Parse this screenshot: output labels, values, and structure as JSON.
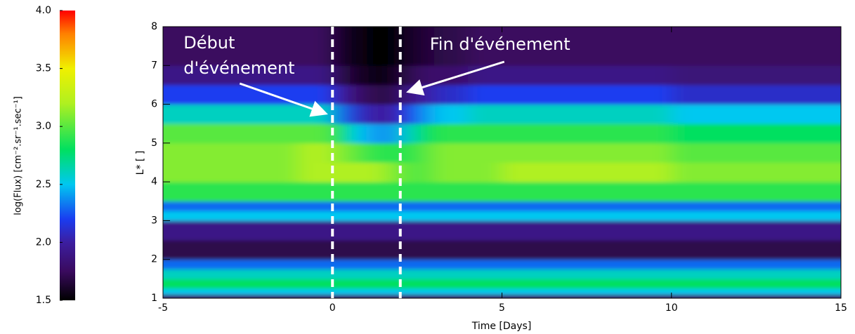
{
  "chart_data": {
    "type": "heatmap",
    "x_label": "Time [Days]",
    "y_label": "L* [ ]",
    "colorbar_label": "log(Flux) [cm⁻².sr⁻¹.sec⁻¹]",
    "xlim": [
      -5,
      15
    ],
    "xticks": [
      -5,
      0,
      5,
      10,
      15
    ],
    "ylim": [
      1,
      8
    ],
    "yticks": [
      1,
      2,
      3,
      4,
      5,
      6,
      7,
      8
    ],
    "clim": [
      1.5,
      4.0
    ],
    "cticks": [
      1.5,
      {
        "value": 2,
        "label": "2.0"
      },
      2.5,
      {
        "value": 3,
        "label": "3.0"
      },
      3.5,
      {
        "value": 4,
        "label": "4.0"
      }
    ],
    "colorscale": [
      [
        1.5,
        "#000000"
      ],
      [
        1.75,
        "#3a0a5e"
      ],
      [
        2.0,
        "#3c1ea0"
      ],
      [
        2.2,
        "#1a3cf0"
      ],
      [
        2.5,
        "#00c8f0"
      ],
      [
        2.8,
        "#00e060"
      ],
      [
        3.2,
        "#b0f020"
      ],
      [
        3.5,
        "#f0f000"
      ],
      [
        3.8,
        "#ff8000"
      ],
      [
        4.0,
        "#ff0000"
      ]
    ],
    "x_edges": [
      -5,
      -1,
      0,
      0.5,
      1,
      1.5,
      2,
      2.5,
      3,
      4,
      5,
      10,
      15
    ],
    "y_edges": [
      1,
      1.1,
      1.25,
      1.5,
      1.75,
      2,
      2.5,
      3,
      3.25,
      3.5,
      4,
      4.5,
      5,
      5.5,
      6,
      6.5,
      7,
      8
    ],
    "z": [
      [
        1.8,
        1.8,
        1.8,
        1.8,
        1.8,
        1.8,
        1.8,
        1.8,
        1.8,
        1.8,
        1.8,
        1.8
      ],
      [
        2.5,
        2.5,
        2.5,
        2.5,
        2.5,
        2.5,
        2.5,
        2.5,
        2.5,
        2.5,
        2.5,
        2.5
      ],
      [
        2.8,
        2.8,
        2.8,
        2.8,
        2.8,
        2.8,
        2.8,
        2.8,
        2.8,
        2.8,
        2.8,
        2.8
      ],
      [
        2.6,
        2.6,
        2.6,
        2.6,
        2.6,
        2.6,
        2.6,
        2.6,
        2.6,
        2.6,
        2.6,
        2.6
      ],
      [
        2.3,
        2.3,
        2.3,
        2.3,
        2.3,
        2.3,
        2.3,
        2.3,
        2.3,
        2.3,
        2.3,
        2.3
      ],
      [
        1.7,
        1.7,
        1.7,
        1.7,
        1.7,
        1.7,
        1.7,
        1.7,
        1.7,
        1.7,
        1.7,
        1.7
      ],
      [
        1.9,
        1.9,
        1.9,
        1.9,
        1.9,
        1.9,
        1.9,
        1.9,
        1.9,
        1.9,
        1.9,
        1.9
      ],
      [
        2.5,
        2.5,
        2.5,
        2.5,
        2.5,
        2.5,
        2.5,
        2.5,
        2.5,
        2.5,
        2.5,
        2.5
      ],
      [
        2.3,
        2.3,
        2.3,
        2.3,
        2.3,
        2.3,
        2.3,
        2.3,
        2.3,
        2.3,
        2.3,
        2.3
      ],
      [
        2.9,
        2.9,
        2.9,
        2.9,
        2.9,
        2.9,
        2.9,
        2.9,
        2.9,
        2.9,
        2.9,
        2.9
      ],
      [
        3.1,
        3.2,
        3.2,
        3.2,
        3.2,
        3.1,
        3.0,
        3.0,
        3.1,
        3.1,
        3.2,
        3.1
      ],
      [
        3.1,
        3.2,
        3.1,
        3.0,
        2.9,
        2.9,
        2.9,
        3.0,
        3.1,
        3.1,
        3.1,
        3.0
      ],
      [
        3.0,
        3.0,
        2.8,
        2.5,
        2.4,
        2.4,
        2.6,
        2.8,
        2.9,
        2.9,
        2.9,
        2.8
      ],
      [
        2.6,
        2.6,
        2.3,
        2.1,
        2.0,
        2.0,
        2.2,
        2.4,
        2.5,
        2.6,
        2.6,
        2.5
      ],
      [
        2.2,
        2.2,
        2.0,
        1.8,
        1.7,
        1.7,
        1.9,
        2.0,
        2.1,
        2.2,
        2.2,
        2.1
      ],
      [
        1.9,
        1.9,
        1.7,
        1.6,
        1.55,
        1.55,
        1.7,
        1.8,
        1.8,
        1.9,
        1.9,
        1.85
      ],
      [
        1.75,
        1.75,
        1.6,
        1.55,
        1.5,
        1.5,
        1.6,
        1.65,
        1.7,
        1.75,
        1.75,
        1.75
      ]
    ],
    "annotations": [
      {
        "x": 0,
        "lines": [
          "Début",
          "d'événement"
        ]
      },
      {
        "x": 2,
        "lines": [
          "Fin d'événement"
        ]
      }
    ]
  }
}
